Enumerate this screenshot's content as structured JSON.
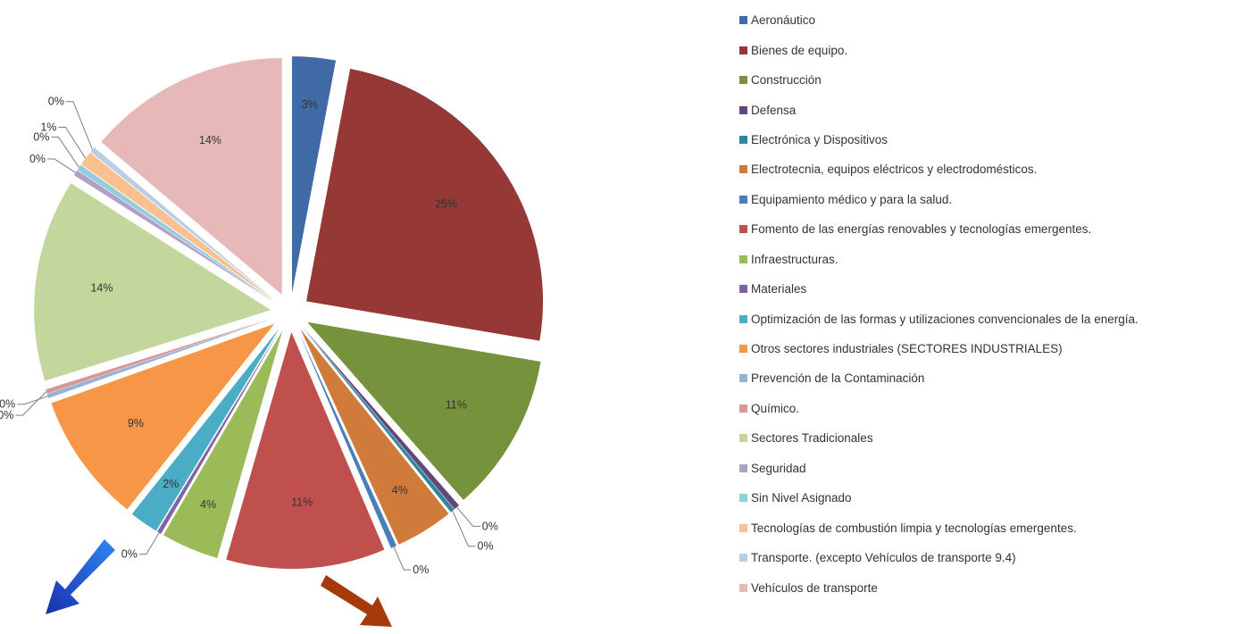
{
  "chart_data": {
    "type": "pie",
    "title": "",
    "legend_position": "right",
    "label_format": "percent",
    "categories": [
      "Aeronáutico",
      "Bienes de equipo.",
      "Construcción",
      "Defensa",
      "Electrónica y Dispositivos",
      "Electrotecnia, equipos eléctricos y electrodomésticos.",
      "Equipamiento médico y para la salud.",
      "Fomento de las energías renovables y tecnologías emergentes.",
      "Infraestructuras.",
      "Materiales",
      "Optimización de las formas y utilizaciones convencionales de la energía.",
      "Otros sectores industriales (SECTORES INDUSTRIALES)",
      "Prevención de la Contaminación",
      "Químico.",
      "Sectores Tradicionales",
      "Seguridad",
      "Sin Nivel Asignado",
      "Tecnologías de combustión limpia y tecnologías emergentes.",
      "Transporte. (excepto Vehículos de transporte 9.4)",
      "Vehículos de transporte"
    ],
    "values": [
      3,
      25,
      11,
      0.4,
      0.3,
      4,
      0.4,
      11,
      4,
      0.3,
      2,
      9,
      0.3,
      0.3,
      14,
      0.4,
      0.4,
      1,
      0.4,
      14
    ],
    "labels": [
      "3%",
      "25%",
      "11%",
      "0%",
      "0%",
      "4%",
      "0%",
      "11%",
      "4%",
      "0%",
      "2%",
      "9%",
      "0%",
      "0%",
      "14%",
      "0%",
      "0%",
      "1%",
      "0%",
      "14%"
    ],
    "colors": [
      "#3F6AA6",
      "#953836",
      "#76923C",
      "#60497A",
      "#31869B",
      "#D07A3B",
      "#4A7EBB",
      "#C0504D",
      "#9BBB59",
      "#8064A2",
      "#4BACC6",
      "#F79646",
      "#95B3D7",
      "#D99694",
      "#C3D69B",
      "#B2A1C7",
      "#93CDDD",
      "#FAC090",
      "#B9CDE5",
      "#E6B9B8"
    ]
  },
  "arrows": [
    {
      "name": "blue-arrow",
      "color": "#1F4FD8",
      "direction": "down-left"
    },
    {
      "name": "brown-arrow",
      "color": "#A63A0A",
      "direction": "down-right"
    }
  ]
}
